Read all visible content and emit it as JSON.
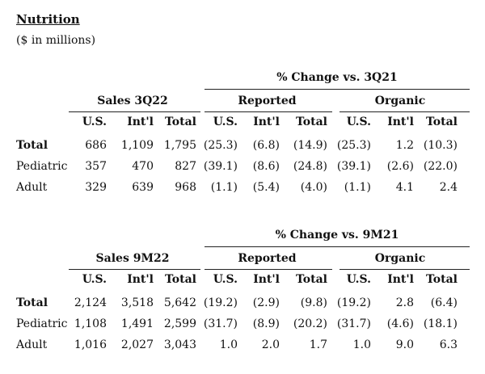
{
  "title": "Nutrition",
  "subtitle": "($ in millions)",
  "tables": [
    {
      "pct_title": "% Change vs. 3Q21",
      "sales_head": "Sales 3Q22",
      "reported_head": "Reported",
      "organic_head": "Organic",
      "columns": [
        "U.S.",
        "Int'l",
        "Total",
        "U.S.",
        "Int'l",
        "Total",
        "U.S.",
        "Int'l",
        "Total"
      ],
      "rows": [
        {
          "label": "Total",
          "bold": true,
          "values": [
            "686",
            "1,109",
            "1,795",
            "(25.3)",
            "(6.8)",
            "(14.9)",
            "(25.3)",
            "1.2",
            "(10.3)"
          ]
        },
        {
          "label": "Pediatric",
          "bold": false,
          "values": [
            "357",
            "470",
            "827",
            "(39.1)",
            "(8.6)",
            "(24.8)",
            "(39.1)",
            "(2.6)",
            "(22.0)"
          ]
        },
        {
          "label": "Adult",
          "bold": false,
          "values": [
            "329",
            "639",
            "968",
            "(1.1)",
            "(5.4)",
            "(4.0)",
            "(1.1)",
            "4.1",
            "2.4"
          ]
        }
      ]
    },
    {
      "pct_title": "% Change vs. 9M21",
      "sales_head": "Sales 9M22",
      "reported_head": "Reported",
      "organic_head": "Organic",
      "columns": [
        "U.S.",
        "Int'l",
        "Total",
        "U.S.",
        "Int'l",
        "Total",
        "U.S.",
        "Int'l",
        "Total"
      ],
      "rows": [
        {
          "label": "Total",
          "bold": true,
          "values": [
            "2,124",
            "3,518",
            "5,642",
            "(19.2)",
            "(2.9)",
            "(9.8)",
            "(19.2)",
            "2.8",
            "(6.4)"
          ]
        },
        {
          "label": "Pediatric",
          "bold": false,
          "values": [
            "1,108",
            "1,491",
            "2,599",
            "(31.7)",
            "(8.9)",
            "(20.2)",
            "(31.7)",
            "(4.6)",
            "(18.1)"
          ]
        },
        {
          "label": "Adult",
          "bold": false,
          "values": [
            "1,016",
            "2,027",
            "3,043",
            "1.0",
            "2.0",
            "1.7",
            "1.0",
            "9.0",
            "6.3"
          ]
        }
      ]
    }
  ]
}
